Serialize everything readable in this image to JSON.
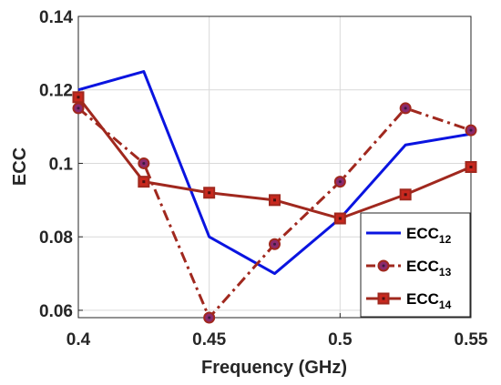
{
  "chart_data": {
    "type": "line",
    "title": "",
    "xlabel": "Frequency (GHz)",
    "ylabel": "ECC",
    "xlim": [
      0.4,
      0.55
    ],
    "ylim": [
      0.058,
      0.14
    ],
    "xticks": [
      0.4,
      0.45,
      0.5,
      0.55
    ],
    "yticks": [
      0.06,
      0.08,
      0.1,
      0.12,
      0.14
    ],
    "xtick_labels": [
      "0.4",
      "0.45",
      "0.5",
      "0.55"
    ],
    "ytick_labels": [
      "0.06",
      "0.08",
      "0.1",
      "0.12",
      "0.14"
    ],
    "grid": true,
    "legend_position": "bottom-right",
    "series": [
      {
        "name": "ECC12",
        "name_base": "ECC",
        "name_sub": "12",
        "color": "#0a14e0",
        "style": "solid",
        "marker": "none",
        "x": [
          0.4,
          0.425,
          0.45,
          0.475,
          0.5,
          0.525,
          0.55
        ],
        "values": [
          0.12,
          0.125,
          0.08,
          0.07,
          0.085,
          0.105,
          0.108
        ]
      },
      {
        "name": "ECC13",
        "name_base": "ECC",
        "name_sub": "13",
        "color": "#a0281e",
        "marker_fill": "#8b2a6e",
        "style": "dashdot",
        "marker": "circle",
        "x": [
          0.4,
          0.425,
          0.45,
          0.475,
          0.5,
          0.525,
          0.55
        ],
        "values": [
          0.115,
          0.1,
          0.058,
          0.078,
          0.095,
          0.115,
          0.109
        ]
      },
      {
        "name": "ECC14",
        "name_base": "ECC",
        "name_sub": "14",
        "color": "#a0281e",
        "marker_fill": "#c8281e",
        "style": "solid",
        "marker": "square",
        "x": [
          0.4,
          0.425,
          0.45,
          0.475,
          0.5,
          0.525,
          0.55
        ],
        "values": [
          0.118,
          0.095,
          0.092,
          0.09,
          0.085,
          0.0915,
          0.099
        ]
      }
    ]
  }
}
